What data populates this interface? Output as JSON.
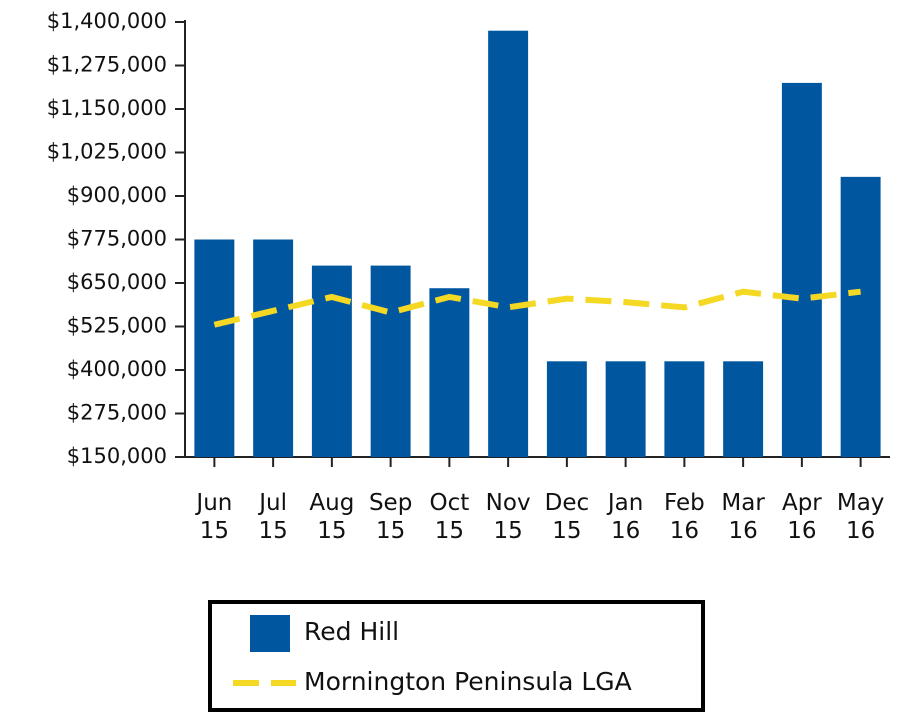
{
  "chart_data": {
    "type": "bar",
    "categories": [
      "Jun 15",
      "Jul 15",
      "Aug 15",
      "Sep 15",
      "Oct 15",
      "Nov 15",
      "Dec 15",
      "Jan 16",
      "Feb 16",
      "Mar 16",
      "Apr 16",
      "May 16"
    ],
    "series": [
      {
        "name": "Red Hill",
        "type": "bar",
        "color": "#0057a0",
        "values": [
          775000,
          775000,
          700000,
          700000,
          635000,
          1375000,
          425000,
          425000,
          425000,
          425000,
          1225000,
          955000
        ]
      },
      {
        "name": "Mornington Peninsula LGA",
        "type": "line",
        "color": "#f5d824",
        "dashed": true,
        "values": [
          530000,
          570000,
          610000,
          565000,
          610000,
          580000,
          605000,
          595000,
          580000,
          625000,
          605000,
          625000
        ]
      }
    ],
    "ylim": [
      150000,
      1400000
    ],
    "yticks": [
      {
        "value": 150000,
        "label": "$150,000"
      },
      {
        "value": 275000,
        "label": "$275,000"
      },
      {
        "value": 400000,
        "label": "$400,000"
      },
      {
        "value": 525000,
        "label": "$525,000"
      },
      {
        "value": 650000,
        "label": "$650,000"
      },
      {
        "value": 775000,
        "label": "$775,000"
      },
      {
        "value": 900000,
        "label": "$900,000"
      },
      {
        "value": 1025000,
        "label": "$1,025,000"
      },
      {
        "value": 1150000,
        "label": "$1,150,000"
      },
      {
        "value": 1275000,
        "label": "$1,275,000"
      },
      {
        "value": 1400000,
        "label": "$1,400,000"
      }
    ],
    "grid": false,
    "legend": "bottom"
  }
}
